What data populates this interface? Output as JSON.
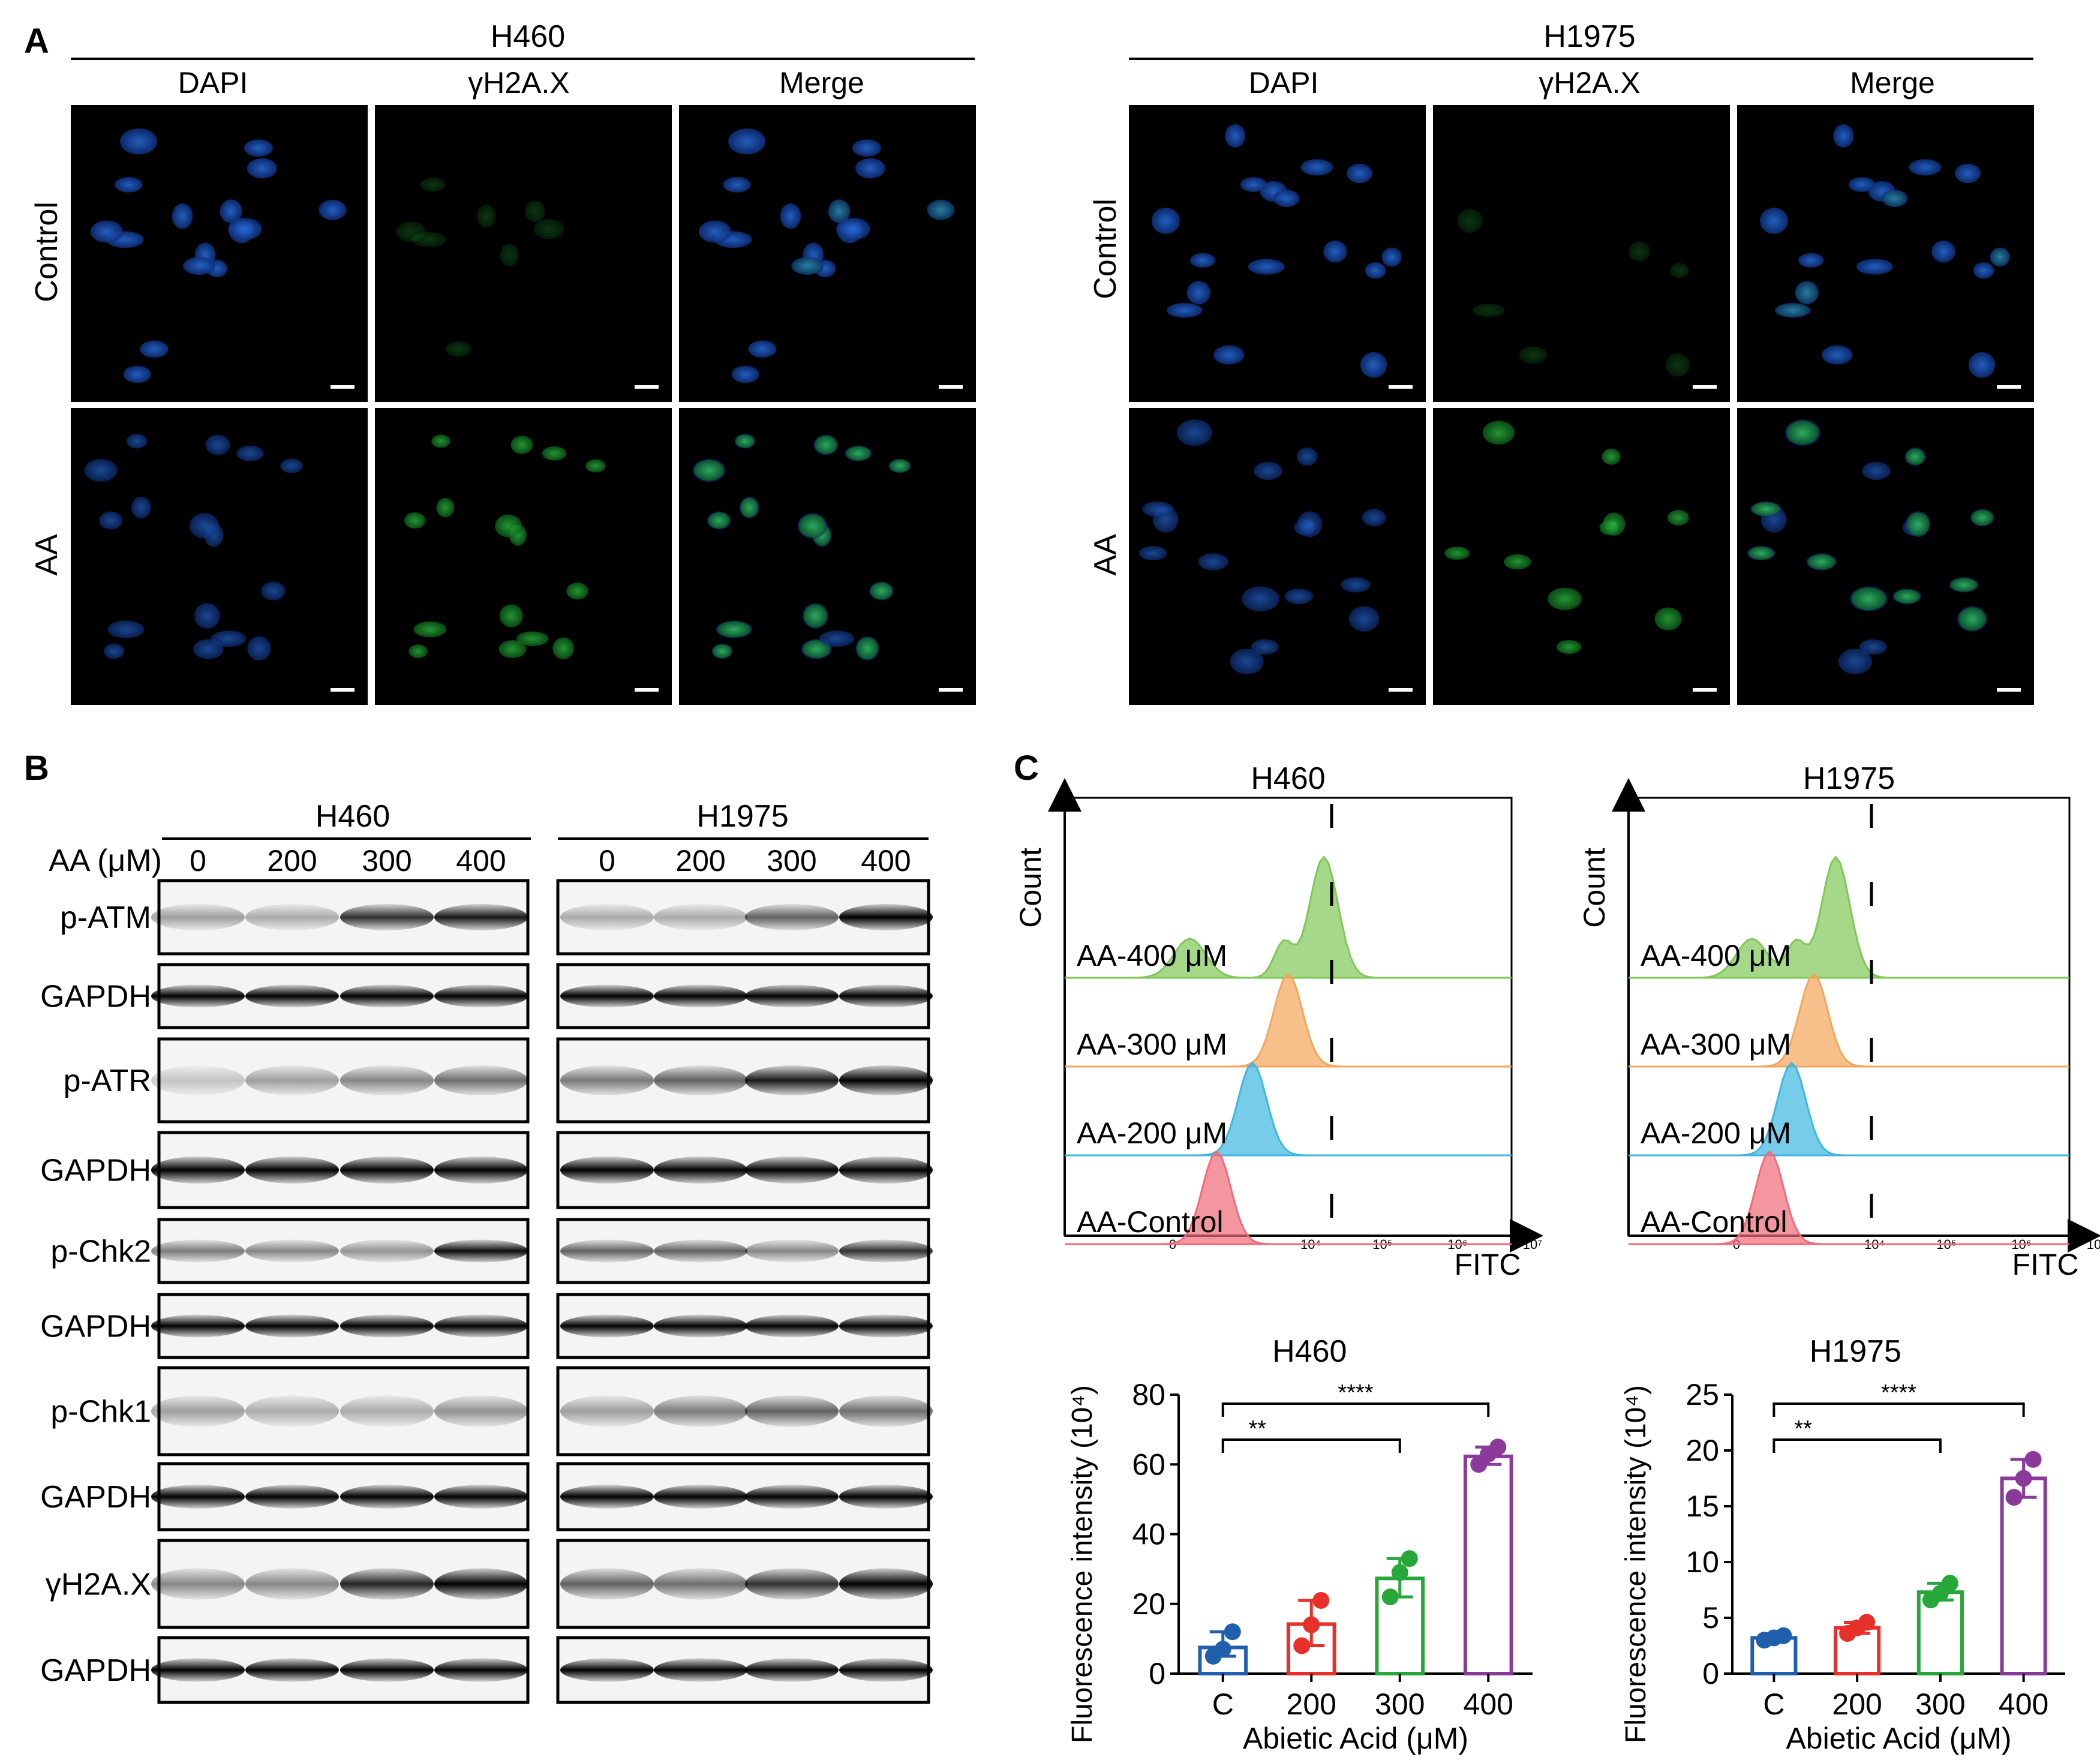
{
  "panel_a": {
    "letter": "A",
    "groups": [
      {
        "cell": "H460",
        "channels": [
          "DAPI",
          "γH2A.X",
          "Merge"
        ]
      },
      {
        "cell": "H1975",
        "channels": [
          "DAPI",
          "γH2A.X",
          "Merge"
        ]
      }
    ],
    "rows": [
      "Control",
      "AA"
    ]
  },
  "panel_b": {
    "letter": "B",
    "dose_label": "AA (μM)",
    "groups": [
      {
        "cell": "H460",
        "doses": [
          "0",
          "200",
          "300",
          "400"
        ]
      },
      {
        "cell": "H1975",
        "doses": [
          "0",
          "200",
          "300",
          "400"
        ]
      }
    ],
    "blots": [
      "p-ATM",
      "GAPDH",
      "p-ATR",
      "GAPDH",
      "p-Chk2",
      "GAPDH",
      "p-Chk1",
      "GAPDH",
      "γH2A.X",
      "GAPDH"
    ]
  },
  "panel_c": {
    "letter": "C",
    "flow": [
      {
        "title": "H460",
        "ylabel": "Count",
        "xlabel": "FITC",
        "curves": [
          "AA-400 μM",
          "AA-300 μM",
          "AA-200 μM",
          "AA-Control"
        ],
        "ticks": [
          "0",
          "10⁴",
          "10⁵",
          "10⁶",
          "10⁷"
        ]
      },
      {
        "title": "H1975",
        "ylabel": "Count",
        "xlabel": "FITC",
        "curves": [
          "AA-400 μM",
          "AA-300 μM",
          "AA-200 μM",
          "AA-Control"
        ],
        "ticks": [
          "0",
          "10⁴",
          "10⁵",
          "10⁶",
          "10⁷"
        ]
      }
    ],
    "bar_colors": [
      "#1f5fad",
      "#e8302a",
      "#27a73a",
      "#8b3a9c"
    ]
  },
  "chart_data": [
    {
      "type": "bar",
      "title": "H460",
      "xlabel": "Abietic Acid (μM)",
      "ylabel": "Fluorescence intensity (10⁴)",
      "categories": [
        "C",
        "200",
        "300",
        "400"
      ],
      "values": [
        7.5,
        14.2,
        27.3,
        62.3
      ],
      "points": [
        [
          5,
          7,
          12
        ],
        [
          8,
          14,
          21
        ],
        [
          22,
          29,
          33
        ],
        [
          60,
          63,
          65
        ]
      ],
      "ylim": [
        0,
        80
      ],
      "yticks": [
        "0",
        "20",
        "40",
        "60",
        "80"
      ],
      "significance": [
        "**",
        "****"
      ]
    },
    {
      "type": "bar",
      "title": "H1975",
      "xlabel": "Abietic Acid (μM)",
      "ylabel": "Fluorescence intensity (10⁴)",
      "categories": [
        "C",
        "200",
        "300",
        "400"
      ],
      "values": [
        3.2,
        4.1,
        7.3,
        17.5
      ],
      "points": [
        [
          3.0,
          3.2,
          3.4
        ],
        [
          3.6,
          4.1,
          4.6
        ],
        [
          6.6,
          7.2,
          8.1
        ],
        [
          15.8,
          17.5,
          19.2
        ]
      ],
      "ylim": [
        0,
        25
      ],
      "yticks": [
        "0",
        "5",
        "10",
        "15",
        "20",
        "25"
      ],
      "significance": [
        "**",
        "****"
      ]
    }
  ]
}
